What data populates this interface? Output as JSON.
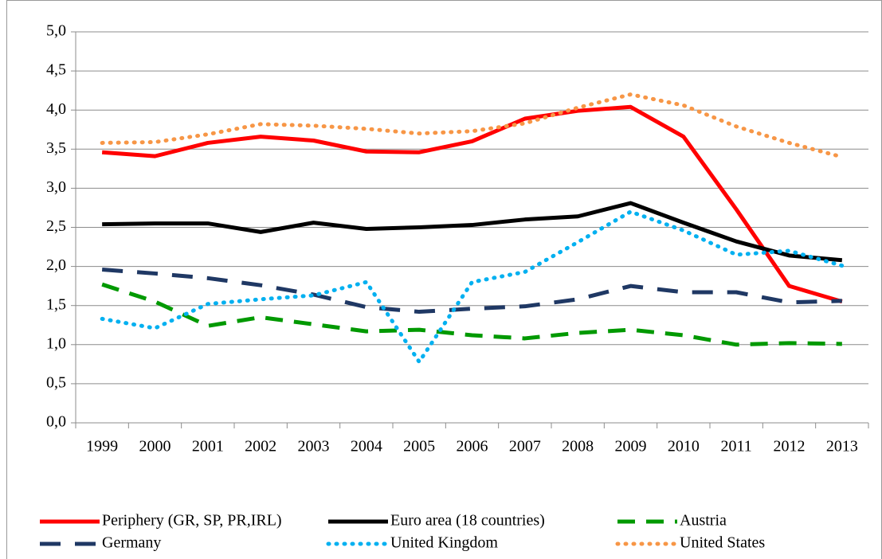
{
  "chart_data": {
    "type": "line",
    "categories": [
      "1999",
      "2000",
      "2001",
      "2002",
      "2003",
      "2004",
      "2005",
      "2006",
      "2007",
      "2008",
      "2009",
      "2010",
      "2011",
      "2012",
      "2013"
    ],
    "series": [
      {
        "name": "Periphery (GR, SP, PR,IRL)",
        "color": "#ff0000",
        "style": "solid",
        "values": [
          3.46,
          3.41,
          3.58,
          3.66,
          3.61,
          3.47,
          3.46,
          3.6,
          3.89,
          3.99,
          4.04,
          3.66,
          2.73,
          1.75,
          1.55
        ]
      },
      {
        "name": "Euro area (18 countries)",
        "color": "#000000",
        "style": "solid",
        "values": [
          2.54,
          2.55,
          2.55,
          2.44,
          2.56,
          2.48,
          2.5,
          2.53,
          2.6,
          2.64,
          2.81,
          2.56,
          2.32,
          2.14,
          2.08
        ]
      },
      {
        "name": "Austria",
        "color": "#009900",
        "style": "dashed",
        "values": [
          1.77,
          1.55,
          1.24,
          1.35,
          1.26,
          1.17,
          1.19,
          1.12,
          1.08,
          1.15,
          1.19,
          1.12,
          1.0,
          1.02,
          1.01
        ]
      },
      {
        "name": "Germany",
        "color": "#1f3864",
        "style": "longdash",
        "values": [
          1.96,
          1.91,
          1.85,
          1.76,
          1.64,
          1.48,
          1.42,
          1.46,
          1.49,
          1.58,
          1.75,
          1.67,
          1.67,
          1.54,
          1.56
        ]
      },
      {
        "name": "United Kingdom",
        "color": "#00b0f0",
        "style": "dotted",
        "values": [
          1.33,
          1.21,
          1.52,
          1.58,
          1.63,
          1.8,
          0.78,
          1.8,
          1.93,
          2.31,
          2.7,
          2.46,
          2.15,
          2.2,
          2.01
        ]
      },
      {
        "name": "United States",
        "color": "#f79646",
        "style": "dotted",
        "values": [
          3.58,
          3.59,
          3.69,
          3.82,
          3.8,
          3.76,
          3.7,
          3.73,
          3.83,
          4.03,
          4.2,
          4.06,
          3.79,
          3.58,
          3.4
        ]
      }
    ],
    "ylim": [
      0,
      5
    ],
    "yticks": [
      {
        "value": 0,
        "label": "0,0"
      },
      {
        "value": 0.5,
        "label": "0,5"
      },
      {
        "value": 1,
        "label": "1,0"
      },
      {
        "value": 1.5,
        "label": "1,5"
      },
      {
        "value": 2,
        "label": "2,0"
      },
      {
        "value": 2.5,
        "label": "2,5"
      },
      {
        "value": 3,
        "label": "3,0"
      },
      {
        "value": 3.5,
        "label": "3,5"
      },
      {
        "value": 4,
        "label": "4,0"
      },
      {
        "value": 4.5,
        "label": "4,5"
      },
      {
        "value": 5,
        "label": "5,0"
      }
    ],
    "grid": true
  }
}
